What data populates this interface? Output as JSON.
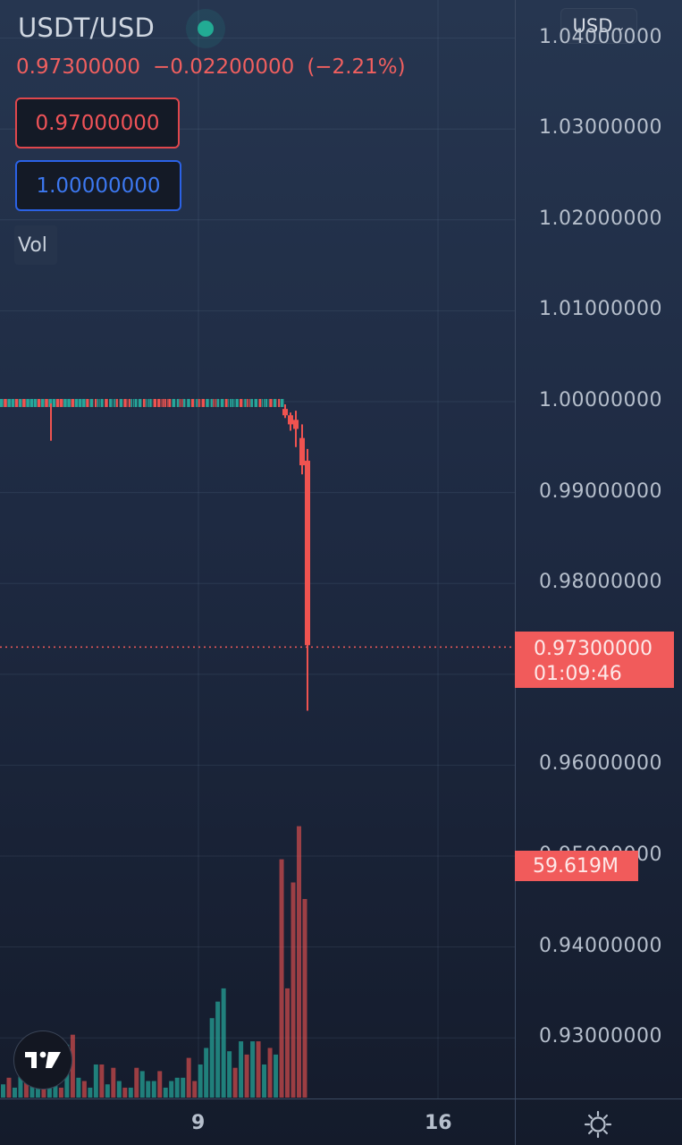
{
  "header": {
    "symbol": "USDT/USD",
    "last_price": "0.97300000",
    "change": "−0.02200000",
    "change_pct": "(−2.21%)",
    "sell_price": "0.97000000",
    "buy_price": "1.00000000",
    "volume_label": "Vol",
    "currency": "USD"
  },
  "colors": {
    "up": "#26a69a",
    "down": "#ef5350",
    "sell_border": "#e0474c",
    "buy_border": "#2b62e6",
    "live_dot": "#22ab94"
  },
  "price_axis": {
    "labels": [
      "1.04000000",
      "1.03000000",
      "1.02000000",
      "1.01000000",
      "1.00000000",
      "0.99000000",
      "0.98000000",
      "0.97000000",
      "0.96000000",
      "0.95000000",
      "0.94000000",
      "0.93000000"
    ]
  },
  "price_tag": {
    "price": "0.97300000",
    "countdown": "01:09:46"
  },
  "volume_tag": "59.619M",
  "time_axis": {
    "labels": [
      "9",
      "16"
    ]
  },
  "chart_data": {
    "type": "candlestick",
    "symbol": "USDT/USD",
    "y_range": [
      0.924,
      1.044
    ],
    "last_price": 0.973,
    "flat_segment": {
      "open": 0.9995,
      "close": 0.9992,
      "low": 0.9957,
      "high": 1.0002
    },
    "crash_candles": [
      {
        "open": 0.9992,
        "close": 0.9985,
        "high": 0.9997,
        "low": 0.9982,
        "dir": "down"
      },
      {
        "open": 0.9985,
        "close": 0.9975,
        "high": 0.9988,
        "low": 0.9968,
        "dir": "down"
      },
      {
        "open": 0.998,
        "close": 0.997,
        "high": 0.999,
        "low": 0.995,
        "dir": "down"
      },
      {
        "open": 0.996,
        "close": 0.993,
        "high": 0.9975,
        "low": 0.992,
        "dir": "down"
      },
      {
        "open": 0.9935,
        "close": 0.9732,
        "high": 0.9948,
        "low": 0.966,
        "dir": "down"
      }
    ],
    "volume": [
      {
        "v": 0.4,
        "d": "up"
      },
      {
        "v": 0.6,
        "d": "down"
      },
      {
        "v": 0.3,
        "d": "up"
      },
      {
        "v": 0.9,
        "d": "up"
      },
      {
        "v": 0.5,
        "d": "down"
      },
      {
        "v": 0.8,
        "d": "up"
      },
      {
        "v": 0.4,
        "d": "up"
      },
      {
        "v": 1.0,
        "d": "down"
      },
      {
        "v": 0.6,
        "d": "up"
      },
      {
        "v": 0.7,
        "d": "up"
      },
      {
        "v": 0.3,
        "d": "down"
      },
      {
        "v": 1.6,
        "d": "up"
      },
      {
        "v": 1.9,
        "d": "down"
      },
      {
        "v": 0.6,
        "d": "up"
      },
      {
        "v": 0.5,
        "d": "down"
      },
      {
        "v": 0.3,
        "d": "up"
      },
      {
        "v": 1.0,
        "d": "up"
      },
      {
        "v": 1.0,
        "d": "down"
      },
      {
        "v": 0.4,
        "d": "up"
      },
      {
        "v": 0.9,
        "d": "down"
      },
      {
        "v": 0.5,
        "d": "up"
      },
      {
        "v": 0.3,
        "d": "down"
      },
      {
        "v": 0.3,
        "d": "up"
      },
      {
        "v": 0.9,
        "d": "down"
      },
      {
        "v": 0.8,
        "d": "up"
      },
      {
        "v": 0.5,
        "d": "up"
      },
      {
        "v": 0.5,
        "d": "up"
      },
      {
        "v": 0.8,
        "d": "down"
      },
      {
        "v": 0.3,
        "d": "up"
      },
      {
        "v": 0.5,
        "d": "up"
      },
      {
        "v": 0.6,
        "d": "up"
      },
      {
        "v": 0.6,
        "d": "up"
      },
      {
        "v": 1.2,
        "d": "down"
      },
      {
        "v": 0.5,
        "d": "down"
      },
      {
        "v": 1.0,
        "d": "up"
      },
      {
        "v": 1.5,
        "d": "up"
      },
      {
        "v": 2.4,
        "d": "up"
      },
      {
        "v": 2.9,
        "d": "up"
      },
      {
        "v": 3.3,
        "d": "up"
      },
      {
        "v": 1.4,
        "d": "up"
      },
      {
        "v": 0.9,
        "d": "down"
      },
      {
        "v": 1.7,
        "d": "up"
      },
      {
        "v": 1.3,
        "d": "down"
      },
      {
        "v": 1.7,
        "d": "up"
      },
      {
        "v": 1.7,
        "d": "down"
      },
      {
        "v": 1.0,
        "d": "up"
      },
      {
        "v": 1.5,
        "d": "down"
      },
      {
        "v": 1.3,
        "d": "up"
      },
      {
        "v": 7.2,
        "d": "down"
      },
      {
        "v": 3.3,
        "d": "down"
      },
      {
        "v": 6.5,
        "d": "down"
      },
      {
        "v": 8.2,
        "d": "down"
      },
      {
        "v": 6.0,
        "d": "down"
      }
    ]
  }
}
